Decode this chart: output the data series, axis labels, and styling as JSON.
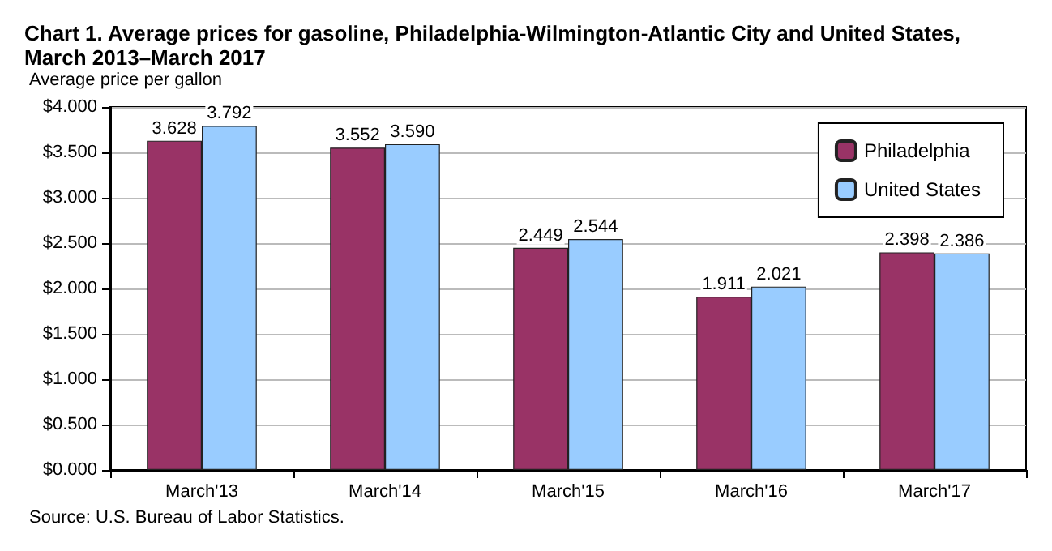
{
  "chart_data": {
    "type": "bar",
    "title": "Chart 1. Average prices for gasoline, Philadelphia-Wilmington-Atlantic City and United States,\nMarch 2013–March 2017",
    "ylabel": "Average price per gallon",
    "annotations": [
      "Source: U.S. Bureau of Labor Statistics."
    ],
    "categories": [
      "March'13",
      "March'14",
      "March'15",
      "March'16",
      "March'17"
    ],
    "series": [
      {
        "name": "Philadelphia",
        "color": "#993366",
        "values": [
          3.628,
          3.552,
          2.449,
          1.911,
          2.398
        ],
        "value_labels": [
          "3.628",
          "3.552",
          "2.449",
          "1.911",
          "2.398"
        ]
      },
      {
        "name": "United States",
        "color": "#99ccff",
        "values": [
          3.792,
          3.59,
          2.544,
          2.021,
          2.386
        ],
        "value_labels": [
          "3.792",
          "3.590",
          "2.544",
          "2.021",
          "2.386"
        ]
      }
    ],
    "ylim": [
      0,
      4
    ],
    "yticks": [
      {
        "value": 0,
        "label": "$0.000"
      },
      {
        "value": 0.5,
        "label": "$0.500"
      },
      {
        "value": 1,
        "label": "$1.000"
      },
      {
        "value": 1.5,
        "label": "$1.500"
      },
      {
        "value": 2,
        "label": "$2.000"
      },
      {
        "value": 2.5,
        "label": "$2.500"
      },
      {
        "value": 3,
        "label": "$3.000"
      },
      {
        "value": 3.5,
        "label": "$3.500"
      },
      {
        "value": 4,
        "label": "$4.000"
      }
    ],
    "grid": true,
    "legend": "top right"
  }
}
